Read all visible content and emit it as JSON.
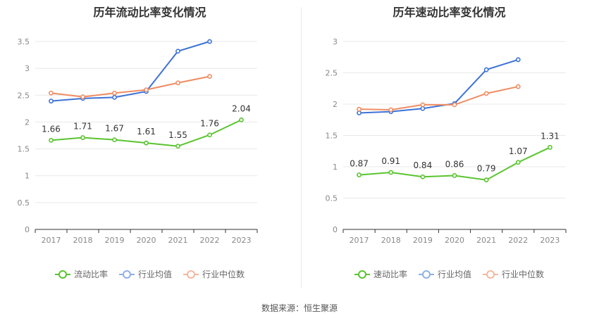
{
  "source": "数据来源：恒生聚源",
  "colors": {
    "green": "#5ac42f",
    "blue": "#3d73d6",
    "orange": "#ef8c62",
    "grid": "#e8e8e8",
    "axis": "#333333",
    "tick": "#888888"
  },
  "chart_data": [
    {
      "type": "line",
      "title": "历年流动比率变化情况",
      "categories": [
        "2017",
        "2018",
        "2019",
        "2020",
        "2021",
        "2022",
        "2023"
      ],
      "ylim": [
        0,
        3.5
      ],
      "yticks": [
        "0",
        "0.5",
        "1",
        "1.5",
        "2",
        "2.5",
        "3",
        "3.5"
      ],
      "grid": true,
      "legend_position": "bottom",
      "series": [
        {
          "name": "流动比率",
          "color": "#5ac42f",
          "values": [
            1.66,
            1.71,
            1.67,
            1.61,
            1.55,
            1.76,
            2.04
          ],
          "labels": [
            "1.66",
            "1.71",
            "1.67",
            "1.61",
            "1.55",
            "1.76",
            "2.04"
          ]
        },
        {
          "name": "行业均值",
          "color": "#3d73d6",
          "values": [
            2.39,
            2.44,
            2.46,
            2.57,
            3.32,
            3.5,
            null
          ]
        },
        {
          "name": "行业中位数",
          "color": "#ef8c62",
          "values": [
            2.54,
            2.47,
            2.54,
            2.6,
            2.73,
            2.85,
            null
          ]
        }
      ]
    },
    {
      "type": "line",
      "title": "历年速动比率变化情况",
      "categories": [
        "2017",
        "2018",
        "2019",
        "2020",
        "2021",
        "2022",
        "2023"
      ],
      "ylim": [
        0,
        3
      ],
      "yticks": [
        "0",
        "0.5",
        "1",
        "1.5",
        "2",
        "2.5",
        "3"
      ],
      "grid": true,
      "legend_position": "bottom",
      "series": [
        {
          "name": "速动比率",
          "color": "#5ac42f",
          "values": [
            0.87,
            0.91,
            0.84,
            0.86,
            0.79,
            1.07,
            1.31
          ],
          "labels": [
            "0.87",
            "0.91",
            "0.84",
            "0.86",
            "0.79",
            "1.07",
            "1.31"
          ]
        },
        {
          "name": "行业均值",
          "color": "#3d73d6",
          "values": [
            1.86,
            1.88,
            1.93,
            2.01,
            2.55,
            2.71,
            null
          ]
        },
        {
          "name": "行业中位数",
          "color": "#ef8c62",
          "values": [
            1.92,
            1.91,
            1.99,
            1.99,
            2.17,
            2.28,
            null
          ]
        }
      ]
    }
  ]
}
